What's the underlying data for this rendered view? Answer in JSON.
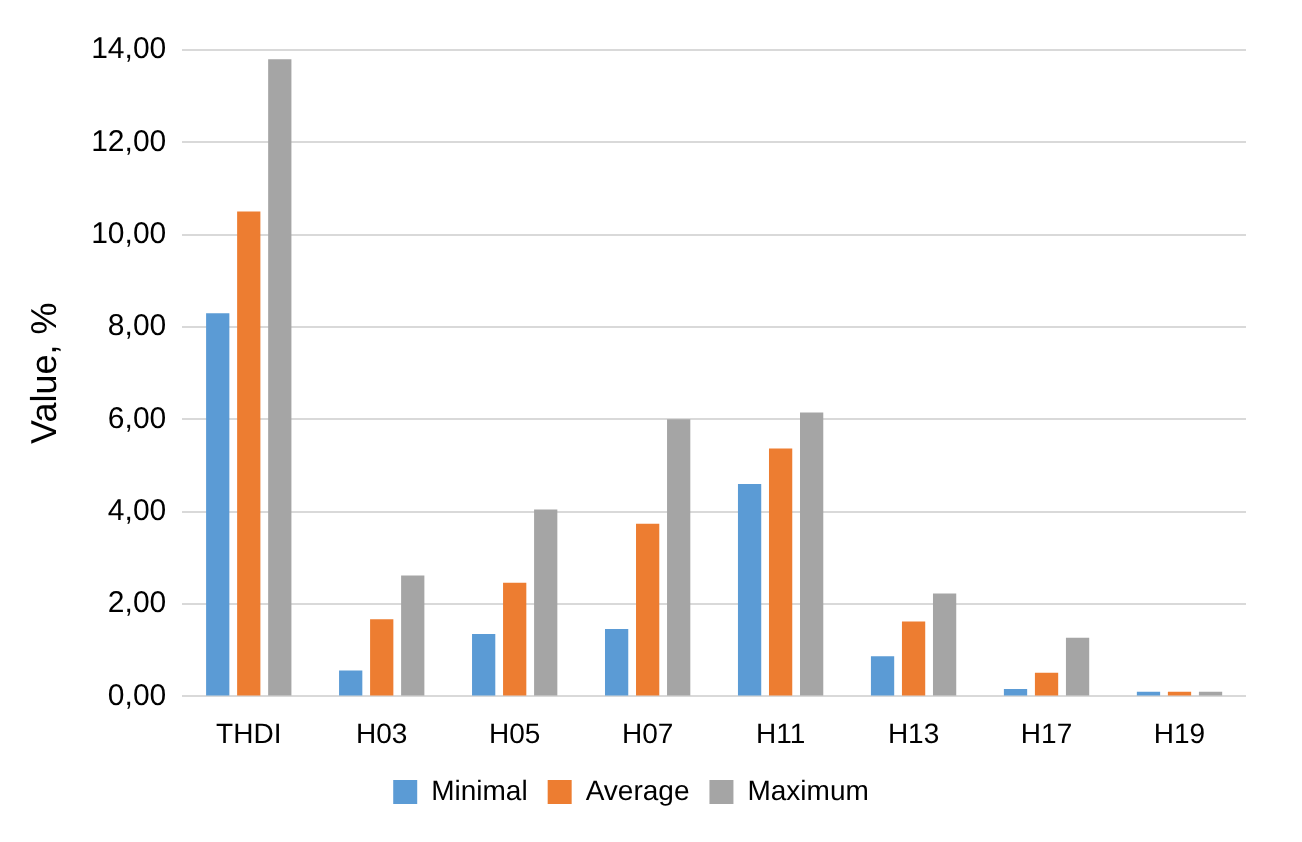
{
  "chart_data": {
    "type": "bar",
    "ylabel": "Value, %",
    "categories": [
      "THDI",
      "H03",
      "H05",
      "H07",
      "H11",
      "H13",
      "H17",
      "H19"
    ],
    "series": [
      {
        "name": "Minimal",
        "color": "#5b9bd5",
        "values": [
          8.3,
          0.56,
          1.35,
          1.46,
          4.6,
          0.87,
          0.16,
          0.1
        ]
      },
      {
        "name": "Average",
        "color": "#ed7d31",
        "values": [
          10.5,
          1.67,
          2.46,
          3.74,
          5.37,
          1.62,
          0.51,
          0.1
        ]
      },
      {
        "name": "Maximum",
        "color": "#a5a5a5",
        "values": [
          13.8,
          2.62,
          4.05,
          6.0,
          6.15,
          2.23,
          1.27,
          0.1
        ]
      }
    ],
    "ylim": [
      0,
      14
    ],
    "yticks": [
      {
        "value": 0,
        "label": "0,00"
      },
      {
        "value": 2,
        "label": "2,00"
      },
      {
        "value": 4,
        "label": "4,00"
      },
      {
        "value": 6,
        "label": "6,00"
      },
      {
        "value": 8,
        "label": "8,00"
      },
      {
        "value": 10,
        "label": "10,00"
      },
      {
        "value": 12,
        "label": "12,00"
      },
      {
        "value": 14,
        "label": "14,00"
      }
    ],
    "grid": "y",
    "legend": "bottom"
  }
}
